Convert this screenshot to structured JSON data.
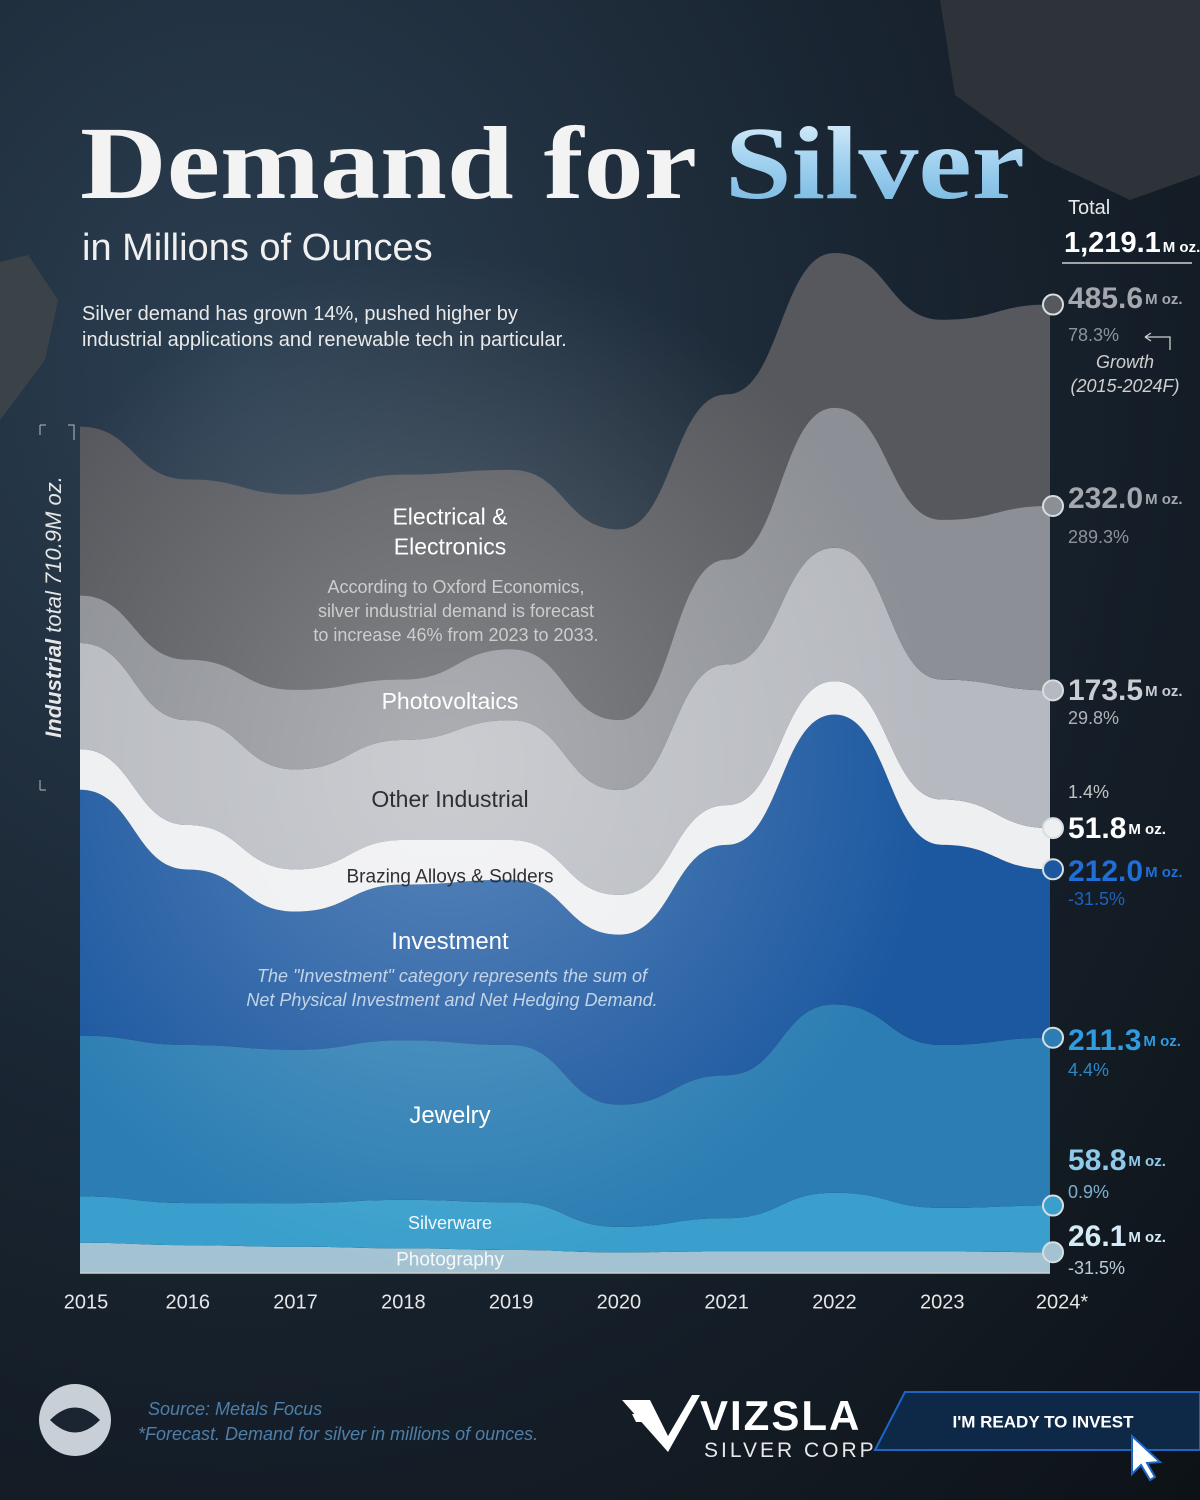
{
  "chart_data": {
    "type": "stacked_area",
    "title": "Demand for",
    "title_highlight": "Silver",
    "subtitle": "in Millions of Ounces",
    "description": [
      "Silver demand has grown 14%, pushed higher by",
      "industrial applications and renewable tech in particular."
    ],
    "categories": [
      "2015",
      "2016",
      "2017",
      "2018",
      "2019",
      "2020",
      "2021",
      "2022",
      "2023",
      "2024*"
    ],
    "unit": "M oz.",
    "total_label": "Total",
    "total_value_label": "1,219.1",
    "growth_note": [
      "Growth",
      "(2015-2024F)"
    ],
    "industrial_label": "Industrial",
    "industrial_total_label": "total 710.9M oz.",
    "series": [
      {
        "name": "Photography",
        "color": "#a3c3d3",
        "label_color": "#d4ebf7",
        "growth": "-31.5%",
        "values": [
          38.1,
          35,
          33,
          31,
          29,
          26,
          27,
          27,
          27,
          26.1
        ],
        "value_labels": [
          null,
          null,
          null,
          null,
          null,
          null,
          null,
          null,
          null,
          "26.1"
        ]
      },
      {
        "name": "Silverware",
        "color": "#3a9fcc",
        "label_color": "#8ecbeb",
        "growth": "0.9%",
        "values": [
          58.3,
          53,
          55,
          61,
          60,
          32,
          42,
          74,
          55,
          58.8
        ],
        "value_labels": [
          null,
          null,
          null,
          null,
          null,
          null,
          null,
          null,
          null,
          "58.8"
        ]
      },
      {
        "name": "Jewelry",
        "color": "#2b7db3",
        "label_color": "#2f9be0",
        "growth": "4.4%",
        "values": [
          202.4,
          199,
          193,
          201,
          198,
          154,
          180,
          237,
          205,
          211.3
        ],
        "value_labels": [
          null,
          null,
          null,
          null,
          null,
          null,
          null,
          null,
          null,
          "211.3"
        ]
      },
      {
        "name": "Investment",
        "color": "#1c58a0",
        "label_color": "#1f6fd6",
        "growth": "-31.5%",
        "values": [
          309.5,
          221,
          174,
          196,
          208,
          214,
          290,
          365,
          252,
          212.0
        ],
        "value_labels": [
          null,
          null,
          null,
          null,
          null,
          null,
          null,
          null,
          null,
          "212.0"
        ]
      },
      {
        "name": "Brazing Alloys & Solders",
        "color": "#eeeff1",
        "label_color": "#ffffff",
        "growth": "1.4%",
        "values": [
          51.1,
          56,
          53,
          56,
          50,
          50,
          50,
          42,
          57,
          51.8
        ],
        "value_labels": [
          null,
          null,
          null,
          null,
          null,
          null,
          null,
          null,
          null,
          "51.8"
        ]
      },
      {
        "name": "Other Industrial",
        "color": "#b6b9bf",
        "label_color": "#c9ccd1",
        "growth": "29.8%",
        "values": [
          133.7,
          132,
          126,
          126,
          151,
          132,
          177,
          168,
          151,
          173.5
        ],
        "value_labels": [
          null,
          null,
          null,
          null,
          null,
          null,
          null,
          null,
          null,
          "173.5"
        ]
      },
      {
        "name": "Electrical & Electronics",
        "color": "#56585d",
        "label_color": "#a4a7ad",
        "growth": "78.3%",
        "values": [
          272.4,
          303,
          346,
          334,
          315,
          328,
          340,
          371,
          453,
          485.6
        ],
        "value_labels": [
          null,
          null,
          null,
          null,
          null,
          null,
          null,
          null,
          null,
          "485.6"
        ]
      },
      {
        "name": "Photovoltaics",
        "color": "#8c8f95",
        "label_color": "#a4a7ad",
        "growth": "289.3%",
        "part_of": "Electrical & Electronics",
        "values": [
          59.6,
          76,
          100,
          76,
          89,
          88,
          132,
          176,
          201,
          232.0
        ],
        "value_labels": [
          null,
          null,
          null,
          null,
          null,
          null,
          null,
          null,
          null,
          "232.0"
        ]
      }
    ],
    "annotations": [
      {
        "lines": [
          "According to Oxford Economics,",
          "silver industrial demand is forecast",
          "to increase 46% from 2023 to 2033."
        ]
      },
      {
        "lines": [
          "The \"Investment\" category represents the sum of",
          "Net Physical Investment and Net Hedging Demand."
        ]
      }
    ],
    "source": "Source: Metals Focus",
    "footnote": "*Forecast. Demand for silver in millions of ounces.",
    "brand": "VIZSLA",
    "brand_sub": "SILVER CORP",
    "cta": "I'M READY TO INVEST"
  }
}
